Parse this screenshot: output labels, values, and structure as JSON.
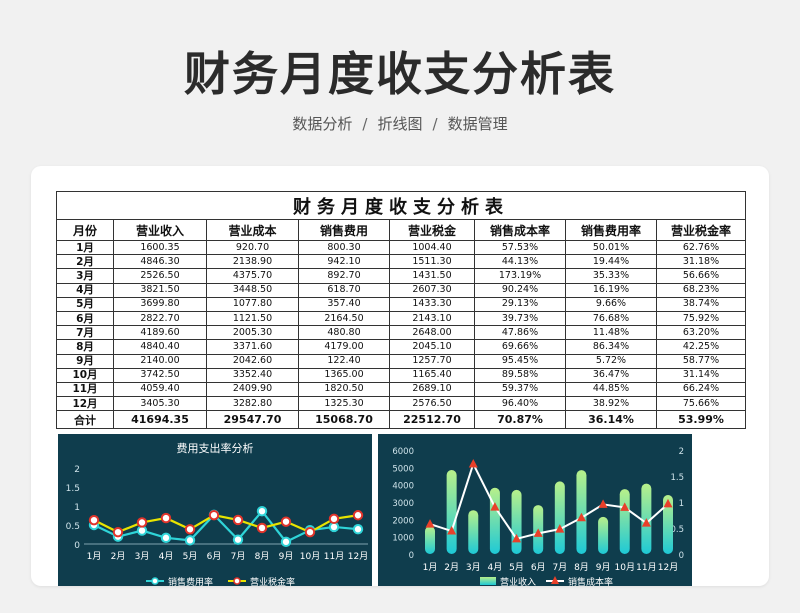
{
  "page": {
    "title": "财务月度收支分析表",
    "breadcrumb": [
      "数据分析",
      "折线图",
      "数据管理"
    ]
  },
  "sheet": {
    "title": "财务月度收支分析表",
    "headers": [
      "月份",
      "营业收入",
      "营业成本",
      "销售费用",
      "营业税金",
      "销售成本率",
      "销售费用率",
      "营业税金率"
    ],
    "rows": [
      [
        "1月",
        "1600.35",
        "920.70",
        "800.30",
        "1004.40",
        "57.53%",
        "50.01%",
        "62.76%"
      ],
      [
        "2月",
        "4846.30",
        "2138.90",
        "942.10",
        "1511.30",
        "44.13%",
        "19.44%",
        "31.18%"
      ],
      [
        "3月",
        "2526.50",
        "4375.70",
        "892.70",
        "1431.50",
        "173.19%",
        "35.33%",
        "56.66%"
      ],
      [
        "4月",
        "3821.50",
        "3448.50",
        "618.70",
        "2607.30",
        "90.24%",
        "16.19%",
        "68.23%"
      ],
      [
        "5月",
        "3699.80",
        "1077.80",
        "357.40",
        "1433.30",
        "29.13%",
        "9.66%",
        "38.74%"
      ],
      [
        "6月",
        "2822.70",
        "1121.50",
        "2164.50",
        "2143.10",
        "39.73%",
        "76.68%",
        "75.92%"
      ],
      [
        "7月",
        "4189.60",
        "2005.30",
        "480.80",
        "2648.00",
        "47.86%",
        "11.48%",
        "63.20%"
      ],
      [
        "8月",
        "4840.40",
        "3371.60",
        "4179.00",
        "2045.10",
        "69.66%",
        "86.34%",
        "42.25%"
      ],
      [
        "9月",
        "2140.00",
        "2042.60",
        "122.40",
        "1257.70",
        "95.45%",
        "5.72%",
        "58.77%"
      ],
      [
        "10月",
        "3742.50",
        "3352.40",
        "1365.00",
        "1165.40",
        "89.58%",
        "36.47%",
        "31.14%"
      ],
      [
        "11月",
        "4059.40",
        "2409.90",
        "1820.50",
        "2689.10",
        "59.37%",
        "44.85%",
        "66.24%"
      ],
      [
        "12月",
        "3405.30",
        "3282.80",
        "1325.30",
        "2576.50",
        "96.40%",
        "38.92%",
        "75.66%"
      ]
    ],
    "total": [
      "合计",
      "41694.35",
      "29547.70",
      "15068.70",
      "22512.70",
      "70.87%",
      "36.14%",
      "53.99%"
    ]
  },
  "chart_data": [
    {
      "type": "line",
      "title": "费用支出率分析",
      "categories": [
        "1月",
        "2月",
        "3月",
        "4月",
        "5月",
        "6月",
        "7月",
        "8月",
        "9月",
        "10月",
        "11月",
        "12月"
      ],
      "ylim": [
        0,
        2
      ],
      "yticks": [
        "0",
        "0.5",
        "1",
        "1.5",
        "2"
      ],
      "series": [
        {
          "name": "销售费用率",
          "color": "#2fd4d8",
          "values": [
            0.5001,
            0.1944,
            0.3533,
            0.1619,
            0.0966,
            0.7668,
            0.1148,
            0.8634,
            0.0572,
            0.3647,
            0.4485,
            0.3892
          ]
        },
        {
          "name": "营业税金率",
          "color": "#e8e400",
          "values": [
            0.6276,
            0.3118,
            0.5666,
            0.6823,
            0.3874,
            0.7592,
            0.632,
            0.4225,
            0.5877,
            0.3114,
            0.6624,
            0.7566
          ]
        }
      ],
      "legend": "bottom"
    },
    {
      "type": "bar",
      "categories": [
        "1月",
        "2月",
        "3月",
        "4月",
        "5月",
        "6月",
        "7月",
        "8月",
        "9月",
        "10月",
        "11月",
        "12月"
      ],
      "ylim": [
        0,
        6000
      ],
      "yticks": [
        "0",
        "1000",
        "2000",
        "3000",
        "4000",
        "5000",
        "6000"
      ],
      "y2lim": [
        0,
        2
      ],
      "y2ticks": [
        "0",
        "0.5",
        "1",
        "1.5",
        "2"
      ],
      "series": [
        {
          "name": "营业收入",
          "axis": "left",
          "type": "bar",
          "values": [
            1600.35,
            4846.3,
            2526.5,
            3821.5,
            3699.8,
            2822.7,
            4189.6,
            4840.4,
            2140.0,
            3742.5,
            4059.4,
            3405.3
          ]
        },
        {
          "name": "销售成本率",
          "axis": "right",
          "type": "line",
          "color": "#ffffff",
          "marker_color": "#e8402a",
          "values": [
            0.5753,
            0.4413,
            1.7319,
            0.9024,
            0.2913,
            0.3973,
            0.4786,
            0.6966,
            0.9545,
            0.8958,
            0.5937,
            0.964
          ]
        }
      ],
      "legend": "bottom"
    }
  ]
}
